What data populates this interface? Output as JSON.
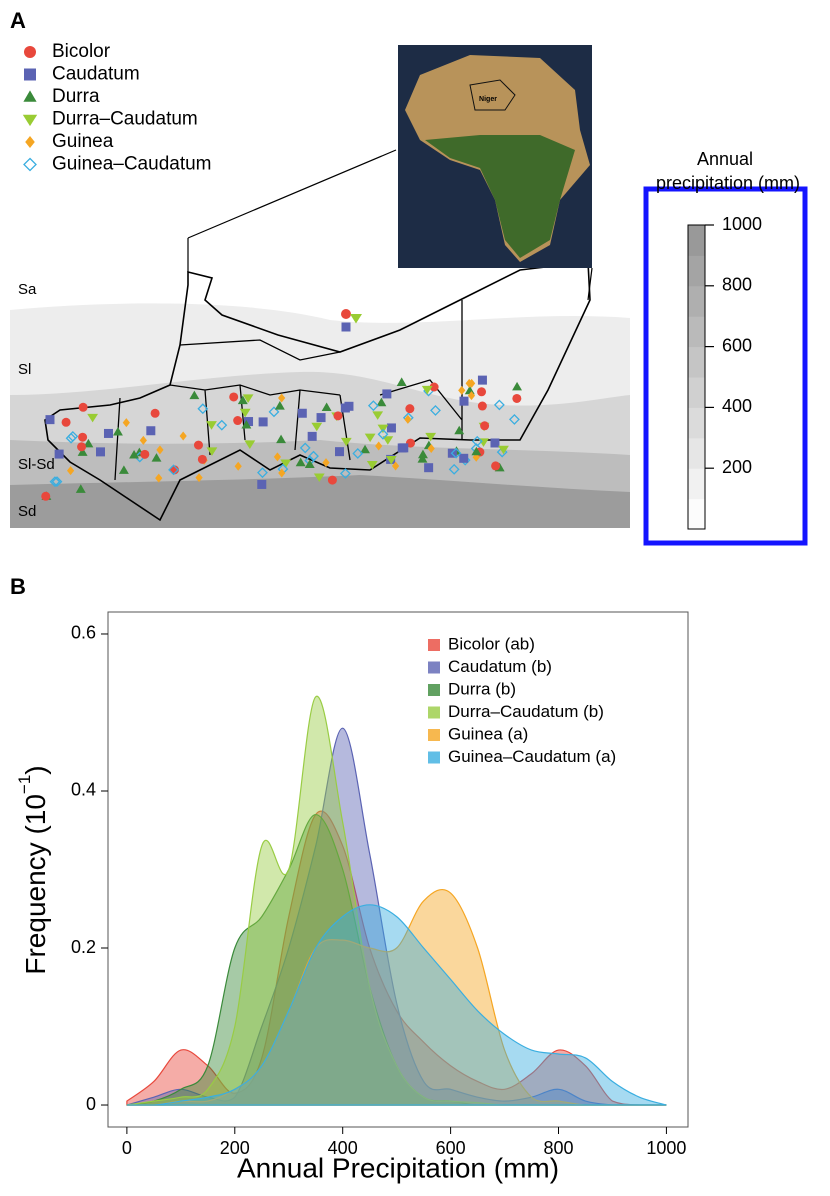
{
  "panel_a": {
    "panel_label": "A",
    "legend": [
      {
        "name": "Bicolor",
        "color": "#e8483c",
        "marker": "circle"
      },
      {
        "name": "Caudatum",
        "color": "#5b63b3",
        "marker": "square"
      },
      {
        "name": "Durra",
        "color": "#3a8a3a",
        "marker": "triangle"
      },
      {
        "name": "Durra–Caudatum",
        "color": "#99cc33",
        "marker": "triangle-down"
      },
      {
        "name": "Guinea",
        "color": "#f5a623",
        "marker": "diamond"
      },
      {
        "name": "Guinea–Caudatum",
        "color": "#3aaee0",
        "marker": "open-diamond"
      }
    ],
    "zones": [
      "Sa",
      "Sl",
      "Sl-Sd",
      "Sd"
    ],
    "inset_label": "Niger",
    "colorbar": {
      "title": [
        "Annual",
        "precipitation (mm)"
      ],
      "lim": [
        0,
        1000
      ],
      "ticks": [
        200,
        400,
        600,
        800,
        1000
      ]
    }
  },
  "chart_data": {
    "type": "area",
    "panel_label": "B",
    "xlabel": "Annual Precipitation (mm)",
    "ylabel": [
      "Frequency (10",
      "−1",
      ")"
    ],
    "x": [
      0,
      50,
      100,
      150,
      200,
      250,
      300,
      350,
      400,
      450,
      500,
      550,
      600,
      650,
      700,
      750,
      800,
      850,
      900,
      950,
      1000
    ],
    "xlim": [
      -35,
      1040
    ],
    "xticks": [
      0,
      200,
      400,
      600,
      800,
      1000
    ],
    "ylim": [
      -0.028,
      0.628
    ],
    "yticks": [
      0,
      0.2,
      0.4,
      0.6
    ],
    "legend_position": "upper right",
    "series": [
      {
        "name": "Bicolor (ab)",
        "color": "#e8483c",
        "values": [
          0.005,
          0.03,
          0.07,
          0.05,
          0.015,
          0.06,
          0.24,
          0.37,
          0.33,
          0.2,
          0.12,
          0.08,
          0.05,
          0.03,
          0.02,
          0.04,
          0.07,
          0.05,
          0.005,
          0,
          0
        ]
      },
      {
        "name": "Caudatum (b)",
        "color": "#5b63b3",
        "values": [
          0,
          0.01,
          0.02,
          0.01,
          0.01,
          0.1,
          0.2,
          0.33,
          0.48,
          0.32,
          0.13,
          0.03,
          0.02,
          0.01,
          0.005,
          0.01,
          0.02,
          0.005,
          0,
          0,
          0
        ]
      },
      {
        "name": "Durra (b)",
        "color": "#3a8a3a",
        "values": [
          0,
          0.005,
          0.02,
          0.05,
          0.2,
          0.24,
          0.3,
          0.37,
          0.3,
          0.15,
          0.05,
          0.01,
          0.005,
          0,
          0,
          0,
          0,
          0,
          0,
          0,
          0
        ]
      },
      {
        "name": "Durra–Caudatum (b)",
        "color": "#99cc44",
        "values": [
          0,
          0.005,
          0.01,
          0.02,
          0.1,
          0.33,
          0.3,
          0.52,
          0.36,
          0.15,
          0.05,
          0.01,
          0.005,
          0.003,
          0,
          0,
          0,
          0,
          0,
          0,
          0
        ]
      },
      {
        "name": "Guinea (a)",
        "color": "#f5a623",
        "values": [
          0,
          0,
          0.005,
          0.005,
          0.02,
          0.05,
          0.12,
          0.2,
          0.21,
          0.2,
          0.2,
          0.26,
          0.27,
          0.2,
          0.07,
          0.01,
          0.005,
          0,
          0,
          0,
          0
        ]
      },
      {
        "name": "Guinea–Caudatum (a)",
        "color": "#3aaee0",
        "values": [
          0,
          0,
          0.005,
          0.01,
          0.02,
          0.05,
          0.12,
          0.2,
          0.24,
          0.255,
          0.24,
          0.2,
          0.16,
          0.12,
          0.09,
          0.07,
          0.065,
          0.06,
          0.03,
          0.01,
          0
        ]
      }
    ]
  }
}
